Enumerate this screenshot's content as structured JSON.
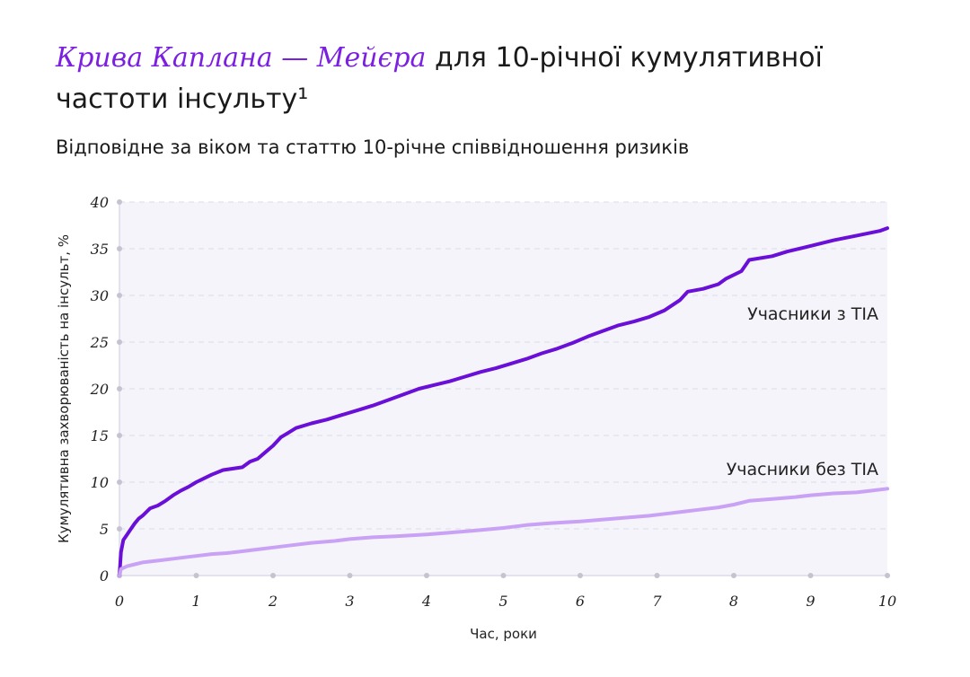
{
  "header": {
    "title_accent": "Крива Каплана — Мейєра",
    "title_rest": " для 10-річної кумулятивної частоти інсульту¹",
    "subtitle": "Відповідне за віком та статтю 10-річне співвідношення ризиків"
  },
  "colors": {
    "accent": "#7b1fe0",
    "series_tia": "#6a0fd8",
    "series_no_tia": "#c9a2f5",
    "plot_bg": "#f5f4fa",
    "grid": "#dcdbe8"
  },
  "chart_data": {
    "type": "line",
    "xlabel": "Час, роки",
    "ylabel": "Кумулятивна захворюваність на інсульт, %",
    "xlim": [
      0,
      10
    ],
    "ylim": [
      0,
      40
    ],
    "xticks": [
      0,
      1,
      2,
      3,
      4,
      5,
      6,
      7,
      8,
      9,
      10
    ],
    "yticks": [
      0,
      5,
      10,
      15,
      20,
      25,
      30,
      35,
      40
    ],
    "grid": true,
    "series": [
      {
        "name": "Учасники з TIA",
        "x": [
          0,
          0.02,
          0.05,
          0.1,
          0.15,
          0.2,
          0.25,
          0.3,
          0.4,
          0.5,
          0.6,
          0.7,
          0.8,
          0.9,
          1.0,
          1.1,
          1.2,
          1.35,
          1.6,
          1.7,
          1.8,
          1.9,
          2.0,
          2.1,
          2.2,
          2.3,
          2.5,
          2.7,
          2.9,
          3.1,
          3.3,
          3.5,
          3.7,
          3.9,
          4.1,
          4.3,
          4.5,
          4.7,
          4.9,
          5.1,
          5.3,
          5.5,
          5.7,
          5.9,
          6.1,
          6.3,
          6.5,
          6.7,
          6.9,
          7.1,
          7.3,
          7.4,
          7.6,
          7.8,
          7.9,
          8.1,
          8.2,
          8.5,
          8.7,
          9.0,
          9.3,
          9.6,
          9.9,
          10.0
        ],
        "y": [
          0,
          2.5,
          3.8,
          4.4,
          5.0,
          5.6,
          6.1,
          6.4,
          7.2,
          7.5,
          8.0,
          8.6,
          9.1,
          9.5,
          10.0,
          10.4,
          10.8,
          11.3,
          11.6,
          12.2,
          12.5,
          13.2,
          13.9,
          14.8,
          15.3,
          15.8,
          16.3,
          16.7,
          17.2,
          17.7,
          18.2,
          18.8,
          19.4,
          20.0,
          20.4,
          20.8,
          21.3,
          21.8,
          22.2,
          22.7,
          23.2,
          23.8,
          24.3,
          24.9,
          25.6,
          26.2,
          26.8,
          27.2,
          27.7,
          28.4,
          29.5,
          30.4,
          30.7,
          31.2,
          31.8,
          32.6,
          33.8,
          34.2,
          34.7,
          35.3,
          35.9,
          36.4,
          36.9,
          37.2
        ]
      },
      {
        "name": "Учасники без TIA",
        "x": [
          0,
          0.02,
          0.1,
          0.2,
          0.3,
          0.4,
          0.5,
          0.7,
          0.9,
          1.0,
          1.2,
          1.4,
          1.6,
          1.8,
          2.0,
          2.2,
          2.5,
          2.8,
          3.0,
          3.3,
          3.6,
          4.0,
          4.3,
          4.6,
          5.0,
          5.3,
          5.6,
          6.0,
          6.3,
          6.6,
          6.9,
          7.2,
          7.5,
          7.8,
          8.0,
          8.2,
          8.5,
          8.8,
          9.0,
          9.3,
          9.6,
          9.8,
          10.0
        ],
        "y": [
          0,
          0.7,
          1.0,
          1.2,
          1.4,
          1.5,
          1.6,
          1.8,
          2.0,
          2.1,
          2.3,
          2.4,
          2.6,
          2.8,
          3.0,
          3.2,
          3.5,
          3.7,
          3.9,
          4.1,
          4.2,
          4.4,
          4.6,
          4.8,
          5.1,
          5.4,
          5.6,
          5.8,
          6.0,
          6.2,
          6.4,
          6.7,
          7.0,
          7.3,
          7.6,
          8.0,
          8.2,
          8.4,
          8.6,
          8.8,
          8.9,
          9.1,
          9.3
        ]
      }
    ]
  }
}
